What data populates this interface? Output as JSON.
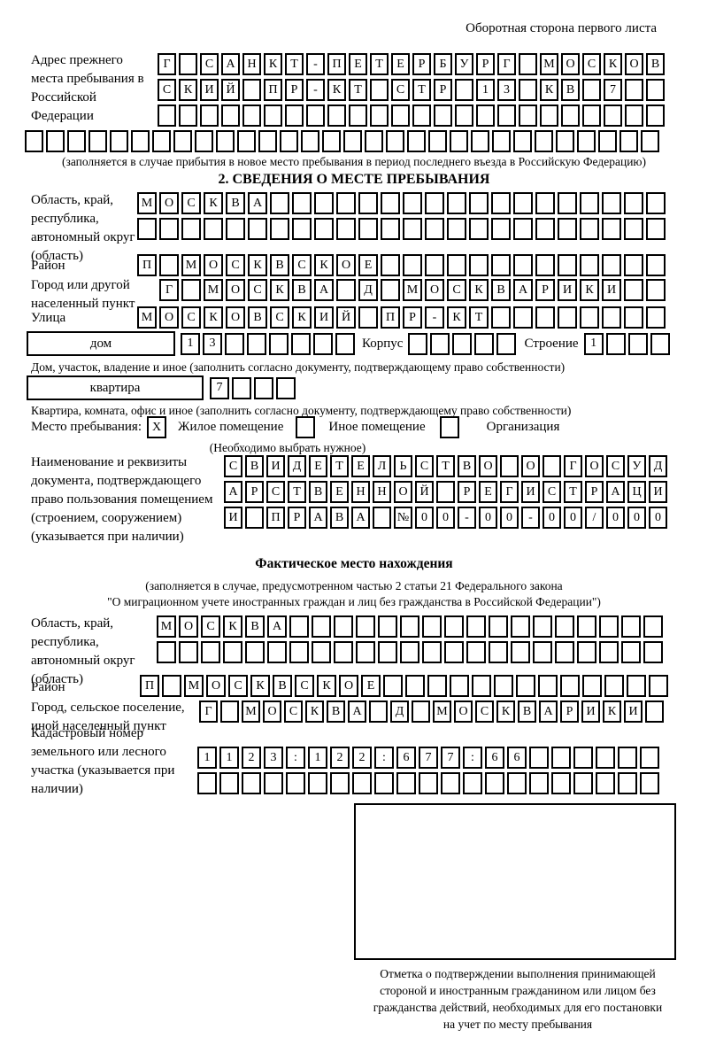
{
  "colors": {
    "ink": "#000000",
    "paper": "#ffffff"
  },
  "header": {
    "note": "Оборотная сторона первого листа"
  },
  "prev_address": {
    "label": "Адрес прежнего места пребывания в Российской Федерации",
    "rows": [
      {
        "text": "Г САНКТ-ПЕТЕРБУРГ МОСКОВ",
        "cells": 24
      },
      {
        "text": "СКИЙ ПР-КТ СТР 13 КВ 7",
        "cells": 24
      },
      {
        "text": "",
        "cells": 24
      }
    ],
    "overflow_row": {
      "text": "",
      "cells": 30
    },
    "caption": "(заполняется в случае прибытия в новое место пребывания в период последнего въезда в Российскую Федерацию)"
  },
  "section2": {
    "title": "2. СВЕДЕНИЯ О МЕСТЕ ПРЕБЫВАНИЯ",
    "region": {
      "label": "Область, край, республика, автономный округ (область)",
      "rows": [
        {
          "text": "МОСКВА",
          "cells": 24
        },
        {
          "text": "",
          "cells": 24
        }
      ]
    },
    "district": {
      "label": "Район",
      "row": {
        "text": "П МОСКВСКОЕ",
        "cells": 24
      }
    },
    "city": {
      "label": "Город или другой населенный пункт",
      "row": {
        "text": "Г МОСКВА Д МОСКВАРИКИ",
        "cells": 23
      }
    },
    "street": {
      "label": "Улица",
      "row": {
        "text": "МОСКОВСКИЙ ПР-КТ",
        "cells": 24
      }
    },
    "house": {
      "box_label": "дом",
      "number_cells": {
        "text": "13",
        "cells": 8
      },
      "korpus_label": "Корпус",
      "korpus_cells": {
        "text": "",
        "cells": 5
      },
      "stroenie_label": "Строение",
      "stroenie_cells": {
        "text": "1",
        "cells": 4
      }
    },
    "house_caption": "Дом, участок, владение и иное (заполнить согласно документу, подтверждающему право собственности)",
    "apartment": {
      "box_label": "квартира",
      "number_cells": {
        "text": "7",
        "cells": 4
      }
    },
    "apartment_caption": "Квартира, комната, офис и иное (заполнить согласно документу, подтверждающему право собственности)",
    "stay": {
      "label": "Место пребывания:",
      "options": [
        {
          "label": "Жилое помещение",
          "mark": "X"
        },
        {
          "label": "Иное помещение",
          "mark": ""
        },
        {
          "label": "Организация",
          "mark": ""
        }
      ],
      "hint": "(Необходимо выбрать нужное)"
    },
    "document": {
      "label": "Наименование и реквизиты документа, подтверждающего право пользования помещением (строением, сооружением) (указывается при наличии)",
      "rows": [
        {
          "text": "СВИДЕТЕЛЬСТВО О ГОСУД",
          "cells": 21
        },
        {
          "text": "АРСТВЕННОЙ РЕГИСТРАЦИ",
          "cells": 21
        },
        {
          "text": "И ПРАВА №00-00-00/000",
          "cells": 21
        }
      ]
    }
  },
  "actual": {
    "title": "Фактическое место нахождения",
    "caption_lines": [
      "(заполняется в случае, предусмотренном частью 2 статьи 21 Федерального закона",
      "\"О миграционном учете иностранных граждан и лиц без гражданства в Российской Федерации\")"
    ],
    "region": {
      "label": "Область, край, республика, автономный округ (область)",
      "rows": [
        {
          "text": "МОСКВА",
          "cells": 23
        },
        {
          "text": "",
          "cells": 23
        }
      ]
    },
    "district": {
      "label": "Район",
      "row": {
        "text": "П МОСКВСКОЕ",
        "cells": 24
      }
    },
    "city": {
      "label": "Город, сельское поселение, иной населенный пункт",
      "row": {
        "text": "Г МОСКВА Д МОСКВАРИКИ",
        "cells": 22
      }
    },
    "cadastral": {
      "label": "Кадастровый номер земельного или лесного участка (указывается при наличии)",
      "rows": [
        {
          "text": "1123:122:677:66",
          "cells": 21
        },
        {
          "text": "",
          "cells": 21
        }
      ]
    },
    "stamp_caption_lines": [
      "Отметка о подтверждении выполнения принимающей",
      "стороной и иностранным гражданином или лицом без",
      "гражданства действий, необходимых для его постановки",
      "на учет по месту пребывания"
    ]
  }
}
